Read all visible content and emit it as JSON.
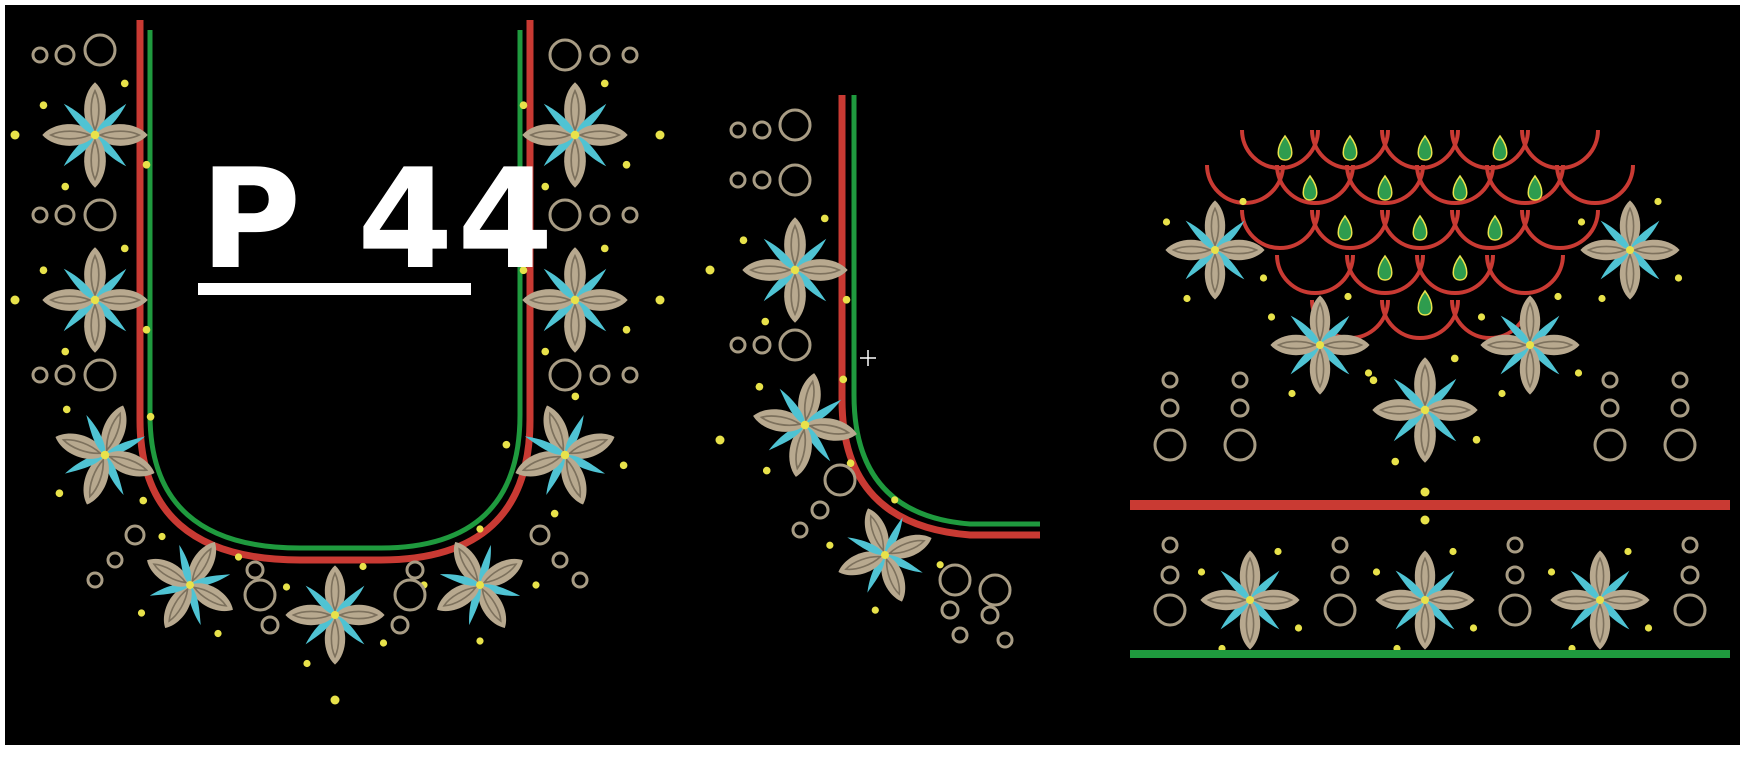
{
  "design": {
    "label": "P 44"
  },
  "colors": {
    "background": "#000000",
    "frame": "#ffffff",
    "petal": "#b8a98f",
    "petal_vein": "#7d715d",
    "accent_petal": "#4fc3d3",
    "dot": "#e8e24a",
    "ring": "#a89c84",
    "red_line": "#c93a33",
    "green_line": "#1f9a3e",
    "drop": "#2e9c4e",
    "drop_outline": "#e8e24a",
    "cursor": "#ffffff"
  },
  "icons": {
    "motif": "lotus-flower-icon",
    "ring": "ring-icon",
    "dot": "bead-dot-icon",
    "drop": "green-drop-icon",
    "cursor": "crosshair-cursor-icon"
  }
}
